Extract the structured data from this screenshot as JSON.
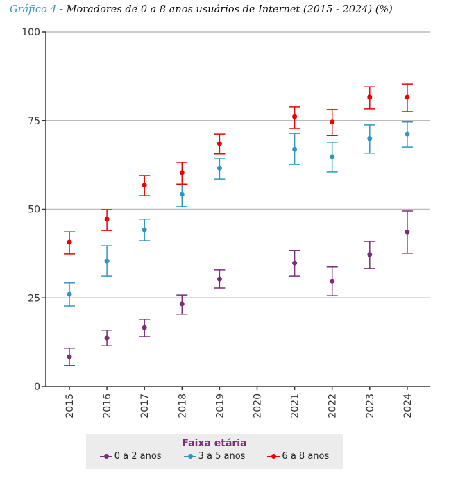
{
  "chart_data": {
    "type": "scatter",
    "title_lead": "Gráfico 4",
    "title": " - Moradores de 0 a 8 anos usuários de Internet (2015 - 2024) (%)",
    "xlabel": "",
    "ylabel": "",
    "categories": [
      "2015",
      "2016",
      "2017",
      "2018",
      "2019",
      "2020",
      "2021",
      "2022",
      "2023",
      "2024"
    ],
    "ylim": [
      0,
      100
    ],
    "yticks": [
      0,
      25,
      50,
      75,
      100
    ],
    "grid": true,
    "legend_title": "Faixa etária",
    "legend_position": "bottom",
    "series": [
      {
        "name": "0 a 2 anos",
        "color": "#7b2d7b",
        "values": [
          8.4,
          13.7,
          16.6,
          23.3,
          30.3,
          null,
          34.8,
          29.7,
          37.2,
          43.6
        ],
        "upper": [
          10.8,
          15.9,
          19.0,
          25.8,
          32.9,
          null,
          38.4,
          33.7,
          40.9,
          49.5
        ],
        "lower": [
          5.9,
          11.5,
          14.1,
          20.4,
          27.8,
          null,
          31.1,
          25.6,
          33.3,
          37.6
        ]
      },
      {
        "name": "3 a 5 anos",
        "color": "#2f97bf",
        "values": [
          26.0,
          35.4,
          44.2,
          54.2,
          61.6,
          null,
          66.9,
          64.8,
          69.9,
          71.2
        ],
        "upper": [
          29.2,
          39.7,
          47.2,
          57.1,
          64.4,
          null,
          71.4,
          68.9,
          73.8,
          74.6
        ],
        "lower": [
          22.7,
          31.1,
          41.1,
          50.7,
          58.5,
          null,
          62.6,
          60.5,
          65.8,
          67.5
        ]
      },
      {
        "name": "6 a 8 anos",
        "color": "#ee0000",
        "values": [
          40.7,
          47.2,
          56.8,
          60.3,
          68.5,
          null,
          76.1,
          74.6,
          81.6,
          81.6
        ],
        "upper": [
          43.6,
          49.9,
          59.5,
          63.2,
          71.2,
          null,
          78.9,
          78.1,
          84.5,
          85.3
        ],
        "lower": [
          37.4,
          44.0,
          53.8,
          57.1,
          65.6,
          null,
          72.8,
          70.8,
          78.3,
          77.5
        ]
      }
    ]
  }
}
